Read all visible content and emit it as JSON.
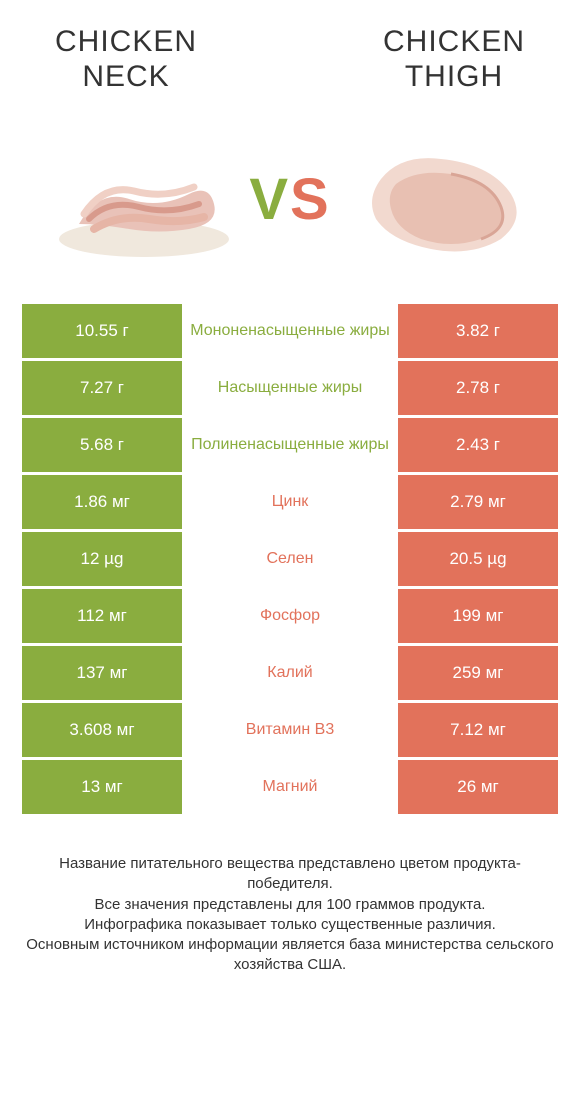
{
  "titles": {
    "left_line1": "CHICKEN",
    "left_line2": "NECK",
    "right_line1": "CHICKEN",
    "right_line2": "THIGH"
  },
  "vs": {
    "v": "V",
    "s": "S"
  },
  "colors": {
    "green": "#8aad3f",
    "coral": "#e2725b",
    "text": "#333333",
    "bg": "#ffffff"
  },
  "rows": [
    {
      "left": "10.55 г",
      "mid": "Мононенасыщенные жиры",
      "right": "3.82 г",
      "winner": "left"
    },
    {
      "left": "7.27 г",
      "mid": "Насыщенные жиры",
      "right": "2.78 г",
      "winner": "left"
    },
    {
      "left": "5.68 г",
      "mid": "Полиненасыщенные жиры",
      "right": "2.43 г",
      "winner": "left"
    },
    {
      "left": "1.86 мг",
      "mid": "Цинк",
      "right": "2.79 мг",
      "winner": "right"
    },
    {
      "left": "12 µg",
      "mid": "Селен",
      "right": "20.5 µg",
      "winner": "right"
    },
    {
      "left": "112 мг",
      "mid": "Фосфор",
      "right": "199 мг",
      "winner": "right"
    },
    {
      "left": "137 мг",
      "mid": "Калий",
      "right": "259 мг",
      "winner": "right"
    },
    {
      "left": "3.608 мг",
      "mid": "Витамин B3",
      "right": "7.12 мг",
      "winner": "right"
    },
    {
      "left": "13 мг",
      "mid": "Магний",
      "right": "26 мг",
      "winner": "right"
    }
  ],
  "footer": {
    "l1": "Название питательного вещества представлено цветом продукта-победителя.",
    "l2": "Все значения представлены для 100 граммов продукта.",
    "l3": "Инфографика показывает только существенные различия.",
    "l4": "Основным источником информации является база министерства сельского хозяйства США."
  }
}
